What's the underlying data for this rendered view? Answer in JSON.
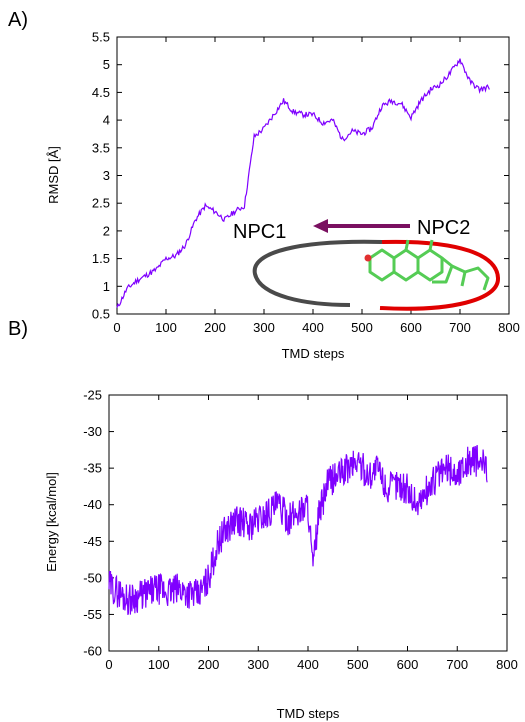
{
  "panel_labels": {
    "a": "A)",
    "b": "B)"
  },
  "chart_data": [
    {
      "type": "line",
      "xlabel": "TMD steps",
      "ylabel": "RMSD [Å]",
      "xlim": [
        0,
        800
      ],
      "ylim": [
        0.5,
        5.5
      ],
      "xticks": [
        0,
        100,
        200,
        300,
        400,
        500,
        600,
        700,
        800
      ],
      "yticks": [
        0.5,
        1,
        1.5,
        2,
        2.5,
        3,
        3.5,
        4,
        4.5,
        5,
        5.5
      ],
      "color": "#7f00ff",
      "grid": false,
      "series": [
        {
          "x": [
            0,
            20,
            40,
            60,
            80,
            100,
            120,
            140,
            160,
            180,
            200,
            220,
            240,
            260,
            280,
            300,
            320,
            340,
            360,
            380,
            400,
            420,
            440,
            460,
            480,
            500,
            520,
            540,
            560,
            580,
            600,
            620,
            640,
            660,
            680,
            700,
            720,
            740,
            760
          ],
          "values": [
            0.6,
            0.95,
            1.1,
            1.2,
            1.3,
            1.5,
            1.55,
            1.75,
            2.2,
            2.45,
            2.35,
            2.2,
            2.35,
            2.45,
            3.7,
            3.85,
            4.1,
            4.35,
            4.15,
            4.1,
            4.1,
            3.95,
            4.0,
            3.65,
            3.8,
            3.75,
            3.85,
            4.25,
            4.35,
            4.3,
            4.05,
            4.35,
            4.55,
            4.65,
            4.85,
            5.1,
            4.7,
            4.55,
            4.6
          ]
        }
      ],
      "annotations": {
        "left_label": "NPC1",
        "right_label": "NPC2"
      }
    },
    {
      "type": "line",
      "xlabel": "TMD steps",
      "ylabel": "Energy [kcal/mol]",
      "xlim": [
        0,
        800
      ],
      "ylim": [
        -60,
        -25
      ],
      "xticks": [
        0,
        100,
        200,
        300,
        400,
        500,
        600,
        700,
        800
      ],
      "yticks": [
        -60,
        -55,
        -50,
        -45,
        -40,
        -35,
        -30,
        -25
      ],
      "color": "#7f00ff",
      "grid": false,
      "series": [
        {
          "x": [
            0,
            20,
            40,
            60,
            80,
            100,
            120,
            140,
            160,
            180,
            200,
            220,
            240,
            260,
            280,
            300,
            320,
            340,
            360,
            380,
            400,
            410,
            420,
            440,
            460,
            480,
            500,
            520,
            540,
            560,
            580,
            600,
            620,
            640,
            660,
            680,
            700,
            720,
            740,
            760
          ],
          "values": [
            -51,
            -52,
            -53,
            -52.5,
            -52,
            -51.5,
            -52,
            -51.5,
            -52,
            -52.5,
            -50,
            -45,
            -43,
            -42,
            -43,
            -42,
            -41,
            -40,
            -42,
            -41,
            -40,
            -49,
            -42,
            -37,
            -36,
            -35,
            -34,
            -36,
            -35,
            -38,
            -37,
            -38,
            -40,
            -38,
            -36,
            -35,
            -36,
            -34,
            -34,
            -35
          ]
        }
      ]
    }
  ]
}
